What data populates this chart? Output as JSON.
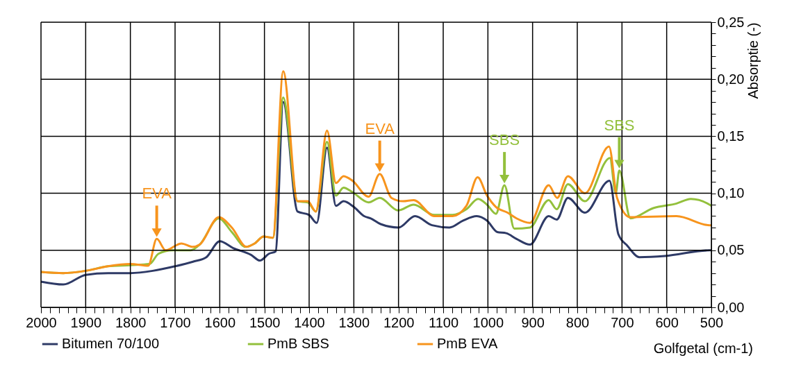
{
  "chart_data": {
    "type": "line",
    "xlabel": "Golfgetal  (cm-1)",
    "ylabel": "Absorptie  (-)",
    "xlim": [
      2000,
      500
    ],
    "ylim": [
      0,
      0.25
    ],
    "xticks": [
      2000,
      {
        "value": 1980,
        "label": null
      },
      {
        "value": 1960,
        "label": null
      },
      {
        "value": 1940,
        "label": null
      },
      {
        "value": 1920,
        "label": null
      },
      1900,
      {
        "value": 1880,
        "label": null
      },
      {
        "value": 1860,
        "label": null
      },
      {
        "value": 1840,
        "label": null
      },
      {
        "value": 1820,
        "label": null
      },
      1800,
      {
        "value": 1780,
        "label": null
      },
      {
        "value": 1760,
        "label": null
      },
      {
        "value": 1740,
        "label": null
      },
      {
        "value": 1720,
        "label": null
      },
      1700,
      {
        "value": 1680,
        "label": null
      },
      {
        "value": 1660,
        "label": null
      },
      {
        "value": 1640,
        "label": null
      },
      {
        "value": 1620,
        "label": null
      },
      1600,
      {
        "value": 1580,
        "label": null
      },
      {
        "value": 1560,
        "label": null
      },
      {
        "value": 1540,
        "label": null
      },
      {
        "value": 1520,
        "label": null
      },
      1500,
      {
        "value": 1480,
        "label": null
      },
      {
        "value": 1460,
        "label": null
      },
      {
        "value": 1440,
        "label": null
      },
      {
        "value": 1420,
        "label": null
      },
      1400,
      {
        "value": 1380,
        "label": null
      },
      {
        "value": 1360,
        "label": null
      },
      {
        "value": 1340,
        "label": null
      },
      {
        "value": 1320,
        "label": null
      },
      1300,
      {
        "value": 1280,
        "label": null
      },
      {
        "value": 1260,
        "label": null
      },
      {
        "value": 1240,
        "label": null
      },
      {
        "value": 1220,
        "label": null
      },
      1200,
      {
        "value": 1180,
        "label": null
      },
      {
        "value": 1160,
        "label": null
      },
      {
        "value": 1140,
        "label": null
      },
      {
        "value": 1120,
        "label": null
      },
      1100,
      {
        "value": 1080,
        "label": null
      },
      {
        "value": 1060,
        "label": null
      },
      {
        "value": 1040,
        "label": null
      },
      {
        "value": 1020,
        "label": null
      },
      1000,
      {
        "value": 980,
        "label": null
      },
      {
        "value": 960,
        "label": null
      },
      {
        "value": 940,
        "label": null
      },
      {
        "value": 920,
        "label": null
      },
      900,
      {
        "value": 880,
        "label": null
      },
      {
        "value": 860,
        "label": null
      },
      {
        "value": 840,
        "label": null
      },
      {
        "value": 820,
        "label": null
      },
      800,
      {
        "value": 780,
        "label": null
      },
      {
        "value": 760,
        "label": null
      },
      {
        "value": 740,
        "label": null
      },
      {
        "value": 720,
        "label": null
      },
      700,
      {
        "value": 680,
        "label": null
      },
      {
        "value": 660,
        "label": null
      },
      {
        "value": 640,
        "label": null
      },
      {
        "value": 620,
        "label": null
      },
      600,
      {
        "value": 580,
        "label": null
      },
      {
        "value": 560,
        "label": null
      },
      {
        "value": 540,
        "label": null
      },
      {
        "value": 520,
        "label": null
      },
      500
    ],
    "yticks": [
      {
        "value": 0,
        "label": "0,00"
      },
      {
        "value": 0.01,
        "label": null
      },
      {
        "value": 0.02,
        "label": null
      },
      {
        "value": 0.03,
        "label": null
      },
      {
        "value": 0.04,
        "label": null
      },
      {
        "value": 0.05,
        "label": "0,05"
      },
      {
        "value": 0.06,
        "label": null
      },
      {
        "value": 0.07,
        "label": null
      },
      {
        "value": 0.08,
        "label": null
      },
      {
        "value": 0.09,
        "label": null
      },
      {
        "value": 0.1,
        "label": "0,10"
      },
      {
        "value": 0.11,
        "label": null
      },
      {
        "value": 0.12,
        "label": null
      },
      {
        "value": 0.13,
        "label": null
      },
      {
        "value": 0.14,
        "label": null
      },
      {
        "value": 0.15,
        "label": "0,15"
      },
      {
        "value": 0.16,
        "label": null
      },
      {
        "value": 0.17,
        "label": null
      },
      {
        "value": 0.18,
        "label": null
      },
      {
        "value": 0.19,
        "label": null
      },
      {
        "value": 0.2,
        "label": "0,20"
      },
      {
        "value": 0.21,
        "label": null
      },
      {
        "value": 0.22,
        "label": null
      },
      {
        "value": 0.23,
        "label": null
      },
      {
        "value": 0.24,
        "label": null
      },
      {
        "value": 0.25,
        "label": "0,25"
      }
    ],
    "grid": true,
    "legend": "bottom",
    "marker": "none",
    "line_style": "solid",
    "series": [
      {
        "name": "Bitumen 70/100",
        "color": "#2e3a66",
        "x": [
          2000,
          1950,
          1900,
          1850,
          1800,
          1750,
          1700,
          1660,
          1630,
          1600,
          1570,
          1530,
          1510,
          1490,
          1475,
          1458,
          1426,
          1400,
          1383,
          1360,
          1340,
          1323,
          1300,
          1277,
          1262,
          1240,
          1200,
          1163,
          1125,
          1086,
          1056,
          1025,
          1002,
          979,
          959,
          936,
          906,
          864,
          846,
          821,
          783,
          728,
          708,
          688,
          661,
          604,
          504,
          500
        ],
        "values": [
          0.0225,
          0.02,
          0.0285,
          0.03,
          0.03,
          0.032,
          0.036,
          0.04,
          0.044,
          0.058,
          0.052,
          0.046,
          0.041,
          0.047,
          0.049,
          0.18,
          0.084,
          0.081,
          0.074,
          0.14,
          0.089,
          0.093,
          0.088,
          0.08,
          0.078,
          0.073,
          0.07,
          0.08,
          0.072,
          0.07,
          0.076,
          0.08,
          0.076,
          0.066,
          0.065,
          0.06,
          0.055,
          0.08,
          0.077,
          0.096,
          0.083,
          0.111,
          0.064,
          0.054,
          0.044,
          0.045,
          0.05,
          0.05
        ]
      },
      {
        "name": "PmB SBS",
        "color": "#93c03c",
        "x": [
          2000,
          1950,
          1900,
          1850,
          1800,
          1757,
          1737,
          1706,
          1665,
          1645,
          1602,
          1573,
          1542,
          1522,
          1502,
          1481,
          1458,
          1426,
          1403,
          1385,
          1360,
          1340,
          1323,
          1303,
          1267,
          1242,
          1201,
          1166,
          1120,
          1079,
          1048,
          1022,
          1002,
          982,
          963,
          941,
          906,
          864,
          846,
          821,
          783,
          727,
          714,
          706,
          681,
          630,
          578,
          546,
          504,
          500
        ],
        "values": [
          0.031,
          0.03,
          0.032,
          0.036,
          0.037,
          0.038,
          0.047,
          0.05,
          0.05,
          0.055,
          0.078,
          0.066,
          0.053,
          0.056,
          0.062,
          0.061,
          0.184,
          0.093,
          0.092,
          0.084,
          0.145,
          0.098,
          0.105,
          0.101,
          0.092,
          0.096,
          0.085,
          0.09,
          0.081,
          0.081,
          0.086,
          0.095,
          0.09,
          0.082,
          0.107,
          0.069,
          0.07,
          0.094,
          0.086,
          0.108,
          0.093,
          0.131,
          0.1,
          0.12,
          0.078,
          0.087,
          0.091,
          0.095,
          0.09,
          0.089
        ]
      },
      {
        "name": "PmB EVA",
        "color": "#f7941d",
        "x": [
          2000,
          1950,
          1900,
          1850,
          1800,
          1760,
          1741,
          1721,
          1686,
          1660,
          1645,
          1602,
          1573,
          1540,
          1522,
          1502,
          1481,
          1458,
          1426,
          1403,
          1385,
          1360,
          1340,
          1323,
          1303,
          1267,
          1242,
          1216,
          1190,
          1166,
          1120,
          1079,
          1048,
          1023,
          1002,
          982,
          956,
          936,
          906,
          864,
          845,
          821,
          783,
          729,
          711,
          681,
          578,
          504,
          500
        ],
        "values": [
          0.031,
          0.03,
          0.032,
          0.036,
          0.038,
          0.0365,
          0.06,
          0.05,
          0.056,
          0.053,
          0.055,
          0.079,
          0.07,
          0.053,
          0.056,
          0.062,
          0.061,
          0.207,
          0.093,
          0.093,
          0.084,
          0.155,
          0.109,
          0.115,
          0.111,
          0.097,
          0.117,
          0.096,
          0.093,
          0.094,
          0.08,
          0.08,
          0.089,
          0.114,
          0.098,
          0.088,
          0.083,
          0.078,
          0.074,
          0.107,
          0.096,
          0.115,
          0.1,
          0.141,
          0.096,
          0.079,
          0.08,
          0.072,
          0.072
        ]
      }
    ],
    "annotations": [
      {
        "text": "EVA",
        "x": 1741,
        "y": 0.06
      },
      {
        "text": "EVA",
        "x": 1242,
        "y": 0.117
      },
      {
        "text": "SBS",
        "x": 963,
        "y": 0.107
      },
      {
        "text": "SBS",
        "x": 706,
        "y": 0.12
      }
    ]
  }
}
